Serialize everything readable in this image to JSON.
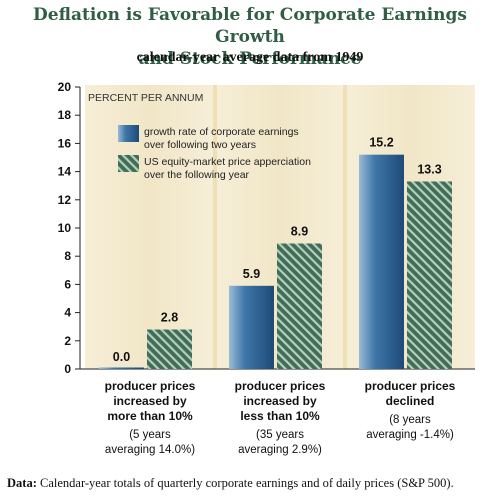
{
  "title_line1": "Deflation is Favorable for Corporate Earnings Growth",
  "title_line2": "and Stock Performance",
  "subtitle": "calendar-year average data from 1949",
  "footnote": {
    "label": "Data:",
    "text": "Calendar-year totals of quarterly corporate earnings and of daily prices (S&P 500)."
  },
  "colors": {
    "earnings": "#2b5f91",
    "equity": "#3e6e55",
    "panel": "#f4ead0",
    "separator": "#eedfb5",
    "title": "#2f5e45"
  },
  "chart_data": {
    "type": "bar",
    "ylabel": "PERCENT PER ANNUM",
    "ylim": [
      0,
      20
    ],
    "yticks": [
      0,
      2,
      4,
      6,
      8,
      10,
      12,
      14,
      16,
      18,
      20
    ],
    "categories": [
      {
        "label": [
          "producer prices",
          "increased by",
          "more than 10%"
        ],
        "note": [
          "(5 years",
          "averaging 14.0%)"
        ]
      },
      {
        "label": [
          "producer prices",
          "increased by",
          "less than 10%"
        ],
        "note": [
          "(35 years",
          "averaging 2.9%)"
        ]
      },
      {
        "label": [
          "producer prices",
          "declined"
        ],
        "note": [
          "(8 years",
          "averaging -1.4%)"
        ]
      }
    ],
    "series": [
      {
        "name": [
          "growth rate of corporate earnings",
          "over following two years"
        ],
        "values": [
          0.0,
          5.9,
          15.2
        ],
        "value_labels": [
          "0.0",
          "5.9",
          "15.2"
        ]
      },
      {
        "name": [
          "US equity-market price apperciation",
          "over the following year"
        ],
        "values": [
          2.8,
          8.9,
          13.3
        ],
        "value_labels": [
          "2.8",
          "8.9",
          "13.3"
        ]
      }
    ],
    "grid": false,
    "legend": "top-left"
  }
}
